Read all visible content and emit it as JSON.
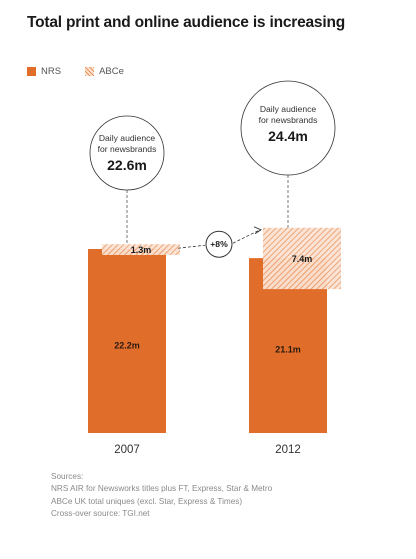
{
  "title": "Total print and online audience is increasing",
  "legend": {
    "nrs": "NRS",
    "abce": "ABCe"
  },
  "colors": {
    "nrs": "#e06e2a",
    "abce_hatch": "#e8925c",
    "abce_fill": "#fbe3d3",
    "text": "#1a1a1a"
  },
  "chart_data": {
    "type": "bar",
    "categories": [
      "2007",
      "2012"
    ],
    "series": [
      {
        "name": "NRS",
        "values": [
          22.2,
          21.1
        ],
        "labels": [
          "22.2m",
          "21.1m"
        ]
      },
      {
        "name": "ABCe",
        "values": [
          1.3,
          7.4
        ],
        "labels": [
          "1.3m",
          "7.4m"
        ]
      }
    ],
    "totals": [
      {
        "caption_line1": "Daily audience",
        "caption_line2": "for newsbrands",
        "value": "22.6m"
      },
      {
        "caption_line1": "Daily audience",
        "caption_line2": "for newsbrands",
        "value": "24.4m"
      }
    ],
    "change_label": "+8%",
    "legend_position": "top-left",
    "grid": false
  },
  "sources": {
    "heading": "Sources:",
    "lines": [
      "NRS AIR for Newsworks titles plus FT, Express, Star & Metro",
      "ABCe UK total uniques (excl. Star, Express & Times)",
      "Cross-over source: TGI.net"
    ]
  }
}
